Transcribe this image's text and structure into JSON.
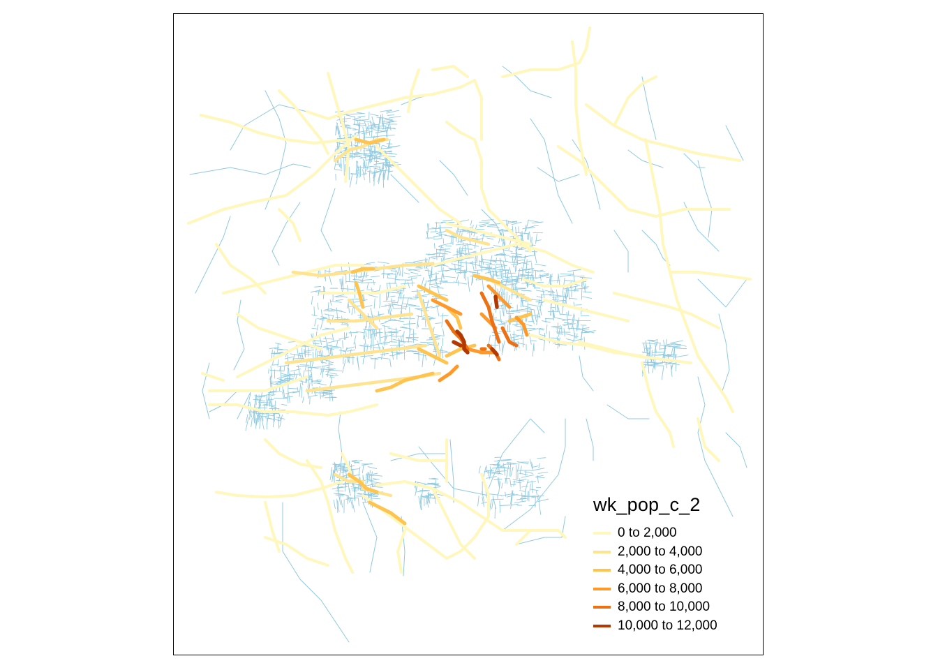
{
  "legend": {
    "title": "wk_pop_c_2",
    "items": [
      {
        "label": "0 to 2,000",
        "color": "#FFF7BC"
      },
      {
        "label": "2,000 to 4,000",
        "color": "#FEE391"
      },
      {
        "label": "4,000 to 6,000",
        "color": "#FEC44F"
      },
      {
        "label": "6,000 to 8,000",
        "color": "#FE9929"
      },
      {
        "label": "8,000 to 10,000",
        "color": "#EC7014"
      },
      {
        "label": "10,000 to 12,000",
        "color": "#CC4C02"
      }
    ],
    "top_class_color": "#B23A02"
  },
  "base_network_color": "#8FC9E0"
}
